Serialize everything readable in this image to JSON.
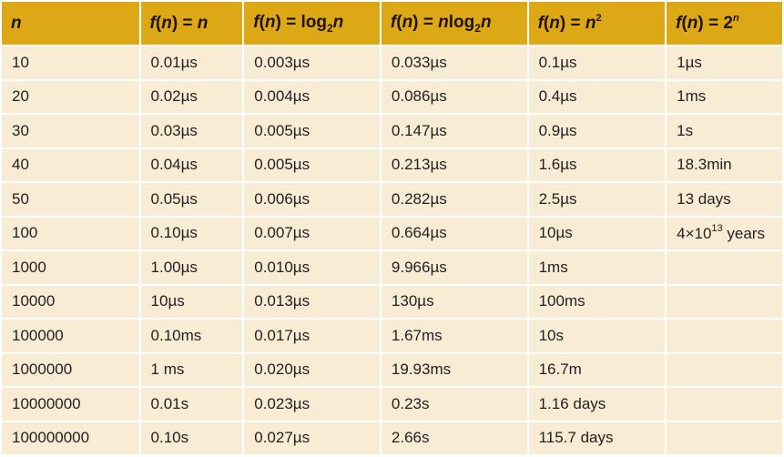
{
  "headers": {
    "n": "n",
    "c1": {
      "f": "f",
      "open": "(",
      "var": "n",
      "close": ")",
      "eq": " = ",
      "expr": "n"
    },
    "c2": {
      "f": "f",
      "open": "(",
      "var": "n",
      "close": ")",
      "eq": " = ",
      "log": "log",
      "base": "2",
      "expr": "n"
    },
    "c3": {
      "f": "f",
      "open": "(",
      "var": "n",
      "close": ")",
      "eq": " = ",
      "pre": "n",
      "log": "log",
      "base": "2",
      "expr": "n"
    },
    "c4": {
      "f": "f",
      "open": "(",
      "var": "n",
      "close": ")",
      "eq": " = ",
      "base": "n",
      "exp": "2"
    },
    "c5": {
      "f": "f",
      "open": "(",
      "var": "n",
      "close": ")",
      "eq": " = ",
      "base": "2",
      "exp": "n"
    }
  },
  "rows": [
    {
      "n": "10",
      "c1": "0.01µs",
      "c2": "0.003µs",
      "c3": "0.033µs",
      "c4": "0.1µs",
      "c5": "1µs"
    },
    {
      "n": "20",
      "c1": "0.02µs",
      "c2": "0.004µs",
      "c3": "0.086µs",
      "c4": "0.4µs",
      "c5": "1ms"
    },
    {
      "n": "30",
      "c1": "0.03µs",
      "c2": "0.005µs",
      "c3": "0.147µs",
      "c4": "0.9µs",
      "c5": "1s"
    },
    {
      "n": "40",
      "c1": "0.04µs",
      "c2": "0.005µs",
      "c3": "0.213µs",
      "c4": "1.6µs",
      "c5": "18.3min"
    },
    {
      "n": "50",
      "c1": "0.05µs",
      "c2": "0.006µs",
      "c3": "0.282µs",
      "c4": "2.5µs",
      "c5": "13 days"
    },
    {
      "n": "100",
      "c1": "0.10µs",
      "c2": "0.007µs",
      "c3": "0.664µs",
      "c4": "10µs",
      "c5": {
        "pre": "4×10",
        "sup": "13",
        "post": " years"
      }
    },
    {
      "n": "1000",
      "c1": "1.00µs",
      "c2": "0.010µs",
      "c3": "9.966µs",
      "c4": "1ms",
      "c5": ""
    },
    {
      "n": "10000",
      "c1": "10µs",
      "c2": "0.013µs",
      "c3": "130µs",
      "c4": "100ms",
      "c5": ""
    },
    {
      "n": "100000",
      "c1": "0.10ms",
      "c2": "0.017µs",
      "c3": "1.67ms",
      "c4": "10s",
      "c5": ""
    },
    {
      "n": "1000000",
      "c1": "1 ms",
      "c2": "0.020µs",
      "c3": "19.93ms",
      "c4": "16.7m",
      "c5": ""
    },
    {
      "n": "10000000",
      "c1": "0.01s",
      "c2": "0.023µs",
      "c3": "0.23s",
      "c4": "1.16 days",
      "c5": ""
    },
    {
      "n": "100000000",
      "c1": "0.10s",
      "c2": "0.027µs",
      "c3": "2.66s",
      "c4": "115.7 days",
      "c5": ""
    }
  ]
}
